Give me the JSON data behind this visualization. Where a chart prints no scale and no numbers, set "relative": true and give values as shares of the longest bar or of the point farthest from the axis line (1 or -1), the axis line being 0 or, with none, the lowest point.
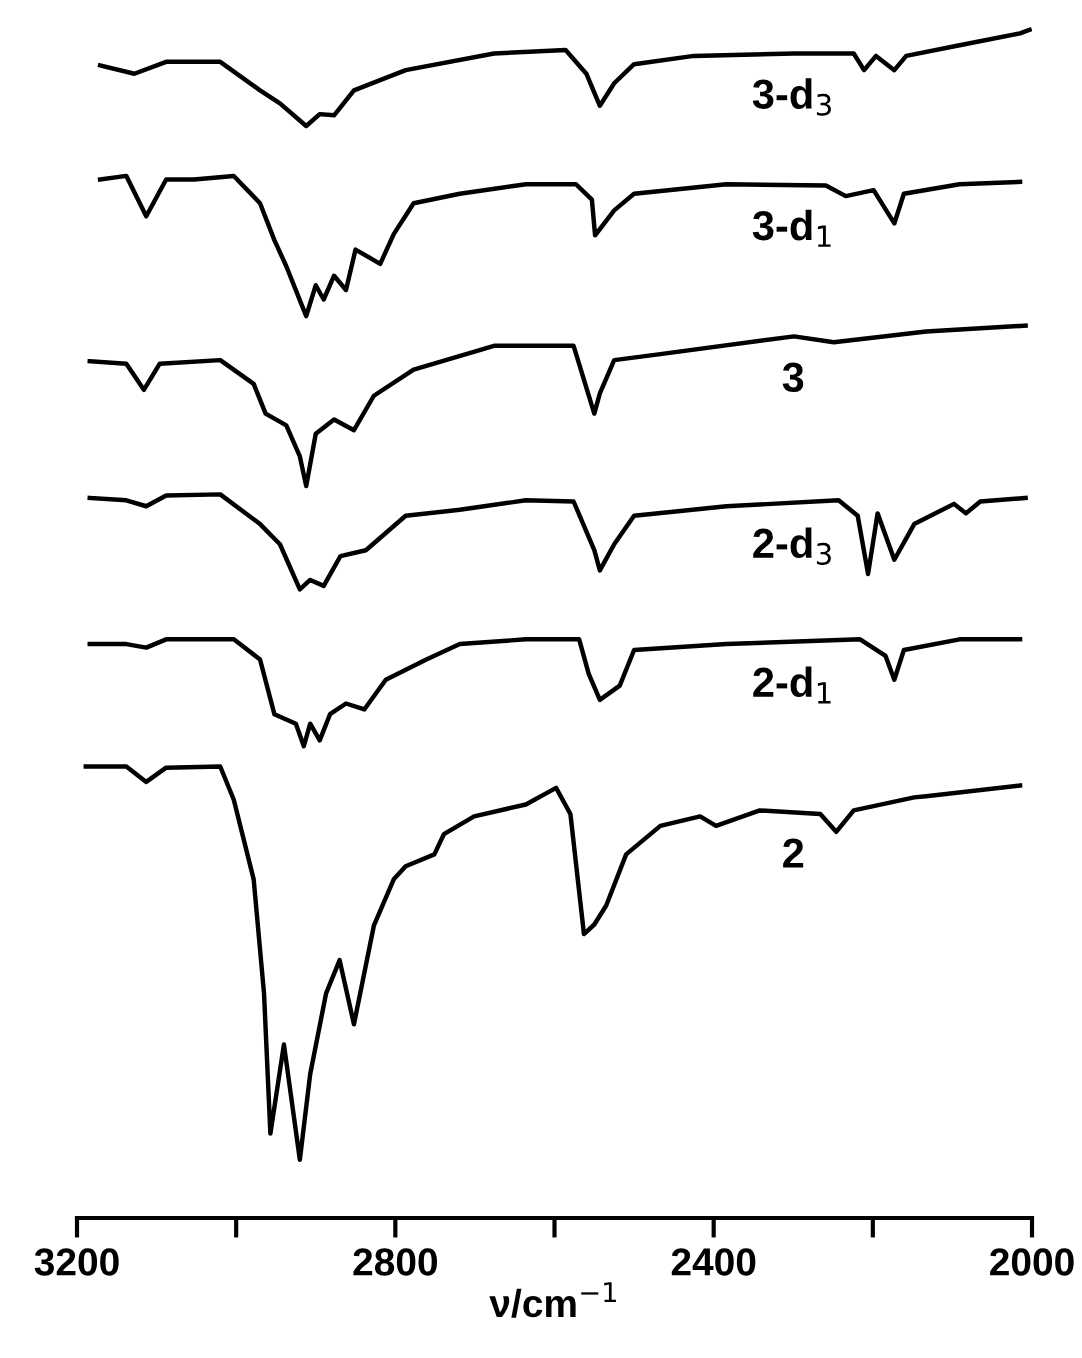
{
  "chart_data": {
    "type": "line",
    "relative": true,
    "xlabel": "ν/cm$^{−1}$",
    "xlim": [
      3200,
      2000
    ],
    "xticks": [
      3200,
      {
        "value": 3000,
        "label": null
      },
      2800,
      {
        "value": 2600,
        "label": null
      },
      2400,
      {
        "value": 2200,
        "label": null
      },
      2000
    ],
    "grid": false,
    "legend": false,
    "tick_labels": "x",
    "series": [
      {
        "name": "3-d$_{3}$",
        "color": "#000000",
        "x": [
          3171,
          3128,
          3088,
          3020,
          2970,
          2945,
          2912,
          2895,
          2877,
          2852,
          2787,
          2676,
          2586,
          2560,
          2543,
          2525,
          2500,
          2425,
          2299,
          2224,
          2211,
          2196,
          2173,
          2158,
          2091,
          2015,
          2003
        ],
        "values": [
          0.97,
          0.963,
          0.973,
          0.973,
          0.949,
          0.938,
          0.919,
          0.929,
          0.928,
          0.949,
          0.966,
          0.98,
          0.983,
          0.963,
          0.936,
          0.955,
          0.971,
          0.978,
          0.98,
          0.98,
          0.966,
          0.978,
          0.966,
          0.978,
          0.987,
          0.997,
          1.0
        ]
      },
      {
        "name": "3-d$_{1}$",
        "color": "#000000",
        "x": [
          3171,
          3138,
          3113,
          3088,
          3053,
          3003,
          2970,
          2952,
          2937,
          2912,
          2900,
          2890,
          2877,
          2862,
          2850,
          2819,
          2802,
          2777,
          2719,
          2636,
          2573,
          2553,
          2549,
          2525,
          2500,
          2384,
          2259,
          2234,
          2199,
          2173,
          2161,
          2091,
          2015
        ],
        "values": [
          0.874,
          0.877,
          0.843,
          0.874,
          0.874,
          0.877,
          0.854,
          0.823,
          0.801,
          0.759,
          0.785,
          0.773,
          0.793,
          0.781,
          0.815,
          0.803,
          0.828,
          0.854,
          0.862,
          0.87,
          0.87,
          0.857,
          0.827,
          0.848,
          0.862,
          0.87,
          0.869,
          0.86,
          0.865,
          0.837,
          0.862,
          0.87,
          0.872
        ]
      },
      {
        "name": "3",
        "color": "#000000",
        "x": [
          3184,
          3138,
          3116,
          3096,
          3020,
          2978,
          2963,
          2937,
          2920,
          2912,
          2900,
          2877,
          2852,
          2827,
          2777,
          2676,
          2576,
          2550,
          2543,
          2525,
          2467,
          2299,
          2249,
          2133,
          2008
        ],
        "values": [
          0.721,
          0.719,
          0.697,
          0.719,
          0.722,
          0.702,
          0.677,
          0.667,
          0.641,
          0.616,
          0.66,
          0.672,
          0.663,
          0.692,
          0.714,
          0.734,
          0.734,
          0.677,
          0.694,
          0.722,
          0.727,
          0.742,
          0.737,
          0.746,
          0.751
        ]
      },
      {
        "name": "2-d$_{3}$",
        "color": "#000000",
        "x": [
          3184,
          3138,
          3113,
          3088,
          3020,
          2970,
          2945,
          2920,
          2907,
          2890,
          2869,
          2837,
          2787,
          2719,
          2636,
          2576,
          2550,
          2543,
          2525,
          2500,
          2384,
          2243,
          2219,
          2206,
          2194,
          2173,
          2148,
          2098,
          2083,
          2065,
          2008
        ],
        "values": [
          0.606,
          0.604,
          0.599,
          0.608,
          0.609,
          0.584,
          0.567,
          0.529,
          0.537,
          0.532,
          0.557,
          0.562,
          0.591,
          0.596,
          0.604,
          0.603,
          0.562,
          0.545,
          0.567,
          0.591,
          0.599,
          0.604,
          0.591,
          0.542,
          0.593,
          0.554,
          0.584,
          0.601,
          0.593,
          0.603,
          0.606
        ]
      },
      {
        "name": "2-d$_{1}$",
        "color": "#000000",
        "x": [
          3184,
          3138,
          3113,
          3088,
          3003,
          2970,
          2952,
          2925,
          2915,
          2907,
          2895,
          2882,
          2862,
          2839,
          2812,
          2761,
          2719,
          2636,
          2569,
          2557,
          2543,
          2518,
          2500,
          2384,
          2216,
          2184,
          2173,
          2161,
          2091,
          2015
        ],
        "values": [
          0.483,
          0.483,
          0.48,
          0.487,
          0.487,
          0.47,
          0.424,
          0.416,
          0.397,
          0.416,
          0.402,
          0.424,
          0.433,
          0.428,
          0.453,
          0.47,
          0.483,
          0.487,
          0.487,
          0.458,
          0.436,
          0.448,
          0.478,
          0.483,
          0.487,
          0.473,
          0.453,
          0.478,
          0.487,
          0.487
        ]
      },
      {
        "name": "2",
        "color": "#000000",
        "x": [
          3189,
          3138,
          3113,
          3088,
          3020,
          3003,
          2978,
          2965,
          2957,
          2940,
          2920,
          2907,
          2887,
          2870,
          2852,
          2827,
          2802,
          2787,
          2751,
          2739,
          2701,
          2636,
          2598,
          2580,
          2563,
          2550,
          2535,
          2510,
          2467,
          2417,
          2397,
          2342,
          2266,
          2246,
          2224,
          2148,
          2133,
          2015
        ],
        "values": [
          0.38,
          0.38,
          0.367,
          0.379,
          0.38,
          0.352,
          0.285,
          0.189,
          0.071,
          0.146,
          0.049,
          0.121,
          0.189,
          0.217,
          0.163,
          0.246,
          0.285,
          0.296,
          0.306,
          0.323,
          0.338,
          0.348,
          0.362,
          0.34,
          0.239,
          0.247,
          0.263,
          0.306,
          0.33,
          0.338,
          0.33,
          0.343,
          0.34,
          0.325,
          0.343,
          0.354,
          0.355,
          0.364
        ]
      }
    ]
  }
}
